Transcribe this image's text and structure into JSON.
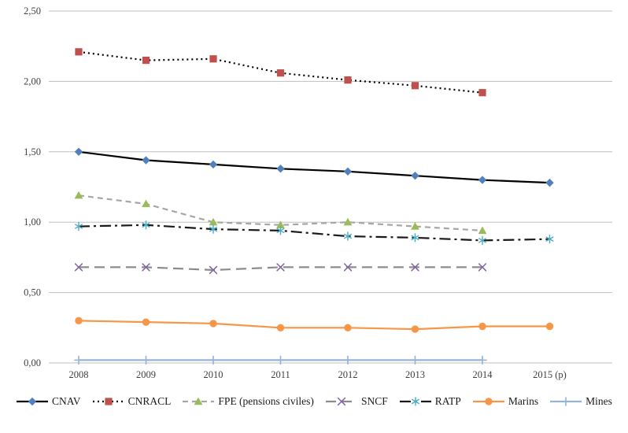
{
  "chart_data": {
    "type": "line",
    "title": "",
    "x_labels": [
      "2008",
      "2009",
      "2010",
      "2011",
      "2012",
      "2013",
      "2014",
      "2015 (p)"
    ],
    "y_ticks": [
      {
        "label": "0,00",
        "value": 0.0
      },
      {
        "label": "0,50",
        "value": 0.5
      },
      {
        "label": "1,00",
        "value": 1.0
      },
      {
        "label": "1,50",
        "value": 1.5
      },
      {
        "label": "2,00",
        "value": 2.0
      },
      {
        "label": "2,50",
        "value": 2.5
      }
    ],
    "ylim": [
      0,
      2.5
    ],
    "grid": true,
    "legend_position": "bottom",
    "colors": {
      "grid": "#bfbfbf",
      "axis_text": "#404040",
      "background": "#ffffff"
    },
    "series": [
      {
        "name": "CNAV",
        "marker": "diamond",
        "color": "#4F81BD",
        "line_color": "#000000",
        "line_style": "solid",
        "values": [
          1.5,
          1.44,
          1.41,
          1.38,
          1.36,
          1.33,
          1.3,
          1.28
        ]
      },
      {
        "name": "CNRACL",
        "marker": "square",
        "color": "#C0504D",
        "line_color": "#000000",
        "line_style": "dotted",
        "values": [
          2.21,
          2.15,
          2.16,
          2.06,
          2.01,
          1.97,
          1.92,
          null
        ]
      },
      {
        "name": "FPE (pensions civiles)",
        "marker": "triangle",
        "color": "#9BBB59",
        "line_color": "#A6A6A6",
        "line_style": "dashed",
        "values": [
          1.19,
          1.13,
          1.0,
          0.98,
          1.0,
          0.97,
          0.94,
          null
        ]
      },
      {
        "name": "SNCF",
        "marker": "x",
        "color": "#8064A2",
        "line_color": "#8C8C8C",
        "line_style": "longdash",
        "values": [
          0.68,
          0.68,
          0.66,
          0.68,
          0.68,
          0.68,
          0.68,
          null
        ]
      },
      {
        "name": "RATP",
        "marker": "asterisk",
        "color": "#4BACC6",
        "line_color": "#1A1A1A",
        "line_style": "dashdot",
        "values": [
          0.97,
          0.98,
          0.95,
          0.94,
          0.9,
          0.89,
          0.87,
          0.88
        ]
      },
      {
        "name": "Marins",
        "marker": "circle",
        "color": "#F79646",
        "line_color": "#F79646",
        "line_style": "solid",
        "values": [
          0.3,
          0.29,
          0.28,
          0.25,
          0.25,
          0.24,
          0.26,
          0.26
        ]
      },
      {
        "name": "Mines",
        "marker": "plus",
        "color": "#95B3D7",
        "line_color": "#95B3D7",
        "line_style": "solid",
        "values": [
          0.02,
          0.02,
          0.02,
          0.02,
          0.02,
          0.02,
          0.02,
          null
        ]
      }
    ]
  }
}
